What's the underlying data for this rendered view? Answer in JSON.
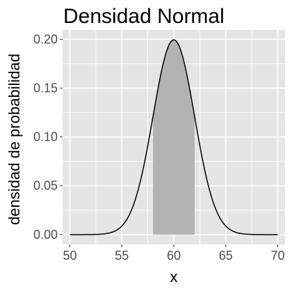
{
  "chart_data": {
    "type": "area",
    "title": "Densidad Normal",
    "xlabel": "x",
    "ylabel": "densidad de probabilidad",
    "xlim": [
      49.3,
      70.7
    ],
    "ylim": [
      -0.0101,
      0.2096
    ],
    "x_ticks": [
      50,
      55,
      60,
      65,
      70
    ],
    "x_tick_labels": [
      "50",
      "55",
      "60",
      "65",
      "70"
    ],
    "y_ticks": [
      0,
      0.05,
      0.1,
      0.15,
      0.2
    ],
    "y_tick_labels": [
      "0.00",
      "0.05",
      "0.10",
      "0.15",
      "0.20"
    ],
    "grid": true,
    "legend": "none",
    "series": [
      {
        "curve": "normal density",
        "mean": 60,
        "sd": 2,
        "x_range": [
          50,
          70
        ],
        "color": "#000000"
      }
    ],
    "shaded_region": {
      "x_range": [
        58,
        62
      ],
      "fill": "#b3b3b3"
    },
    "colors": {
      "panel_background": "#e5e5e5",
      "grid": "#ffffff",
      "curve": "#000000",
      "shade": "#b3b3b3",
      "tick_text": "#4d4d4d",
      "tick_marks": "#333333"
    }
  }
}
